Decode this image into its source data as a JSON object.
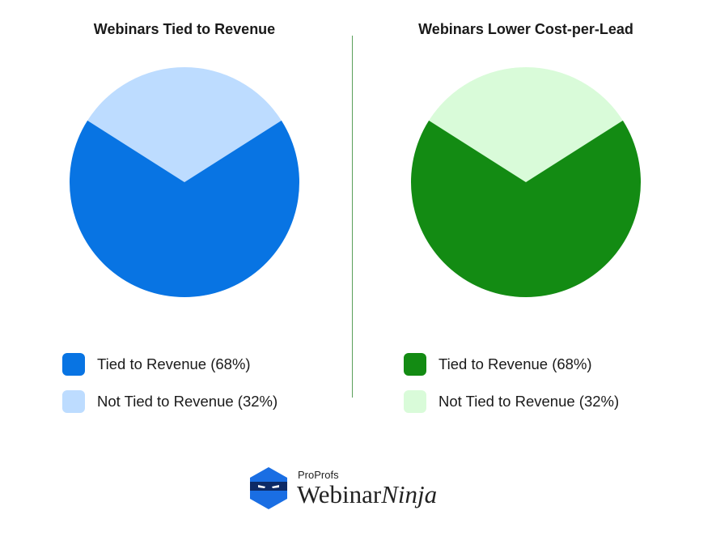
{
  "chart_data": [
    {
      "type": "pie",
      "title": "Webinars Tied to Revenue",
      "slices": [
        {
          "label": "Tied to Revenue (68%)",
          "value": 68,
          "color": "#0874e3"
        },
        {
          "label": "Not Tied to Revenue (32%)",
          "value": 32,
          "color": "#bddcff"
        }
      ],
      "legend_position": "bottom"
    },
    {
      "type": "pie",
      "title": "Webinars Lower Cost-per-Lead",
      "slices": [
        {
          "label": "Tied to Revenue (68%)",
          "value": 68,
          "color": "#138b13"
        },
        {
          "label": "Not Tied to Revenue (32%)",
          "value": 32,
          "color": "#d9fbd9"
        }
      ],
      "legend_position": "bottom"
    }
  ],
  "logo": {
    "brand_small": "ProProfs",
    "brand_main": "Webinar",
    "brand_italic": "Ninja",
    "icon": "ninja-hexagon-icon",
    "color": "#1a6ee3"
  }
}
